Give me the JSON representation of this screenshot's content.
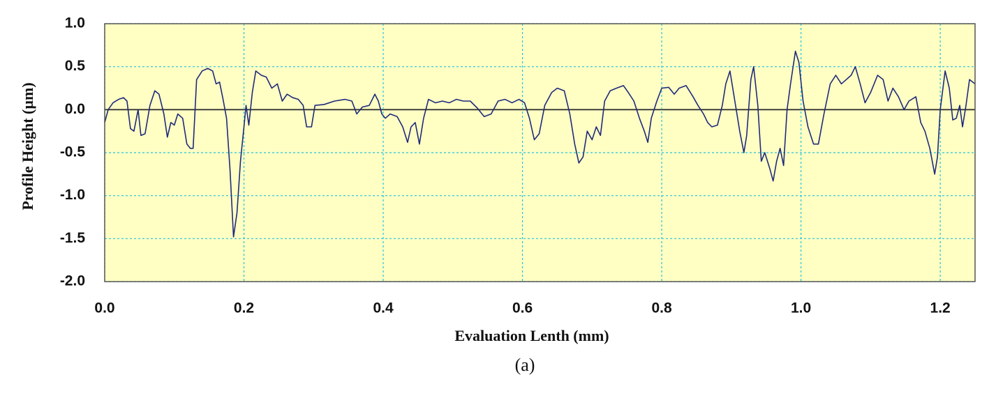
{
  "chart_data": {
    "type": "line",
    "caption": "(a)",
    "xlabel": "Evaluation Lenth (mm)",
    "ylabel": "Profile Height (µm)",
    "xlim": [
      0,
      1.25
    ],
    "ylim": [
      -2,
      1
    ],
    "xticks": [
      {
        "value": 0,
        "label": "0.0"
      },
      0.2,
      0.4,
      0.6,
      0.8,
      {
        "value": 1,
        "label": "1.0"
      },
      1.2
    ],
    "yticks": [
      {
        "value": -2,
        "label": "-2.0"
      },
      -1.5,
      {
        "value": -1,
        "label": "-1.0"
      },
      -0.5,
      {
        "value": 0,
        "label": "0.0"
      },
      0.5,
      {
        "value": 1,
        "label": "1.0"
      }
    ],
    "grid": true,
    "background": "#ffffc4",
    "x": [
      0,
      0.005,
      0.012,
      0.02,
      0.027,
      0.032,
      0.037,
      0.042,
      0.048,
      0.052,
      0.058,
      0.065,
      0.072,
      0.078,
      0.085,
      0.09,
      0.095,
      0.1,
      0.105,
      0.112,
      0.118,
      0.123,
      0.127,
      0.132,
      0.14,
      0.148,
      0.155,
      0.16,
      0.165,
      0.17,
      0.175,
      0.18,
      0.185,
      0.19,
      0.195,
      0.2,
      0.203,
      0.207,
      0.212,
      0.217,
      0.225,
      0.232,
      0.24,
      0.248,
      0.255,
      0.262,
      0.27,
      0.278,
      0.285,
      0.29,
      0.297,
      0.302,
      0.315,
      0.33,
      0.345,
      0.355,
      0.362,
      0.37,
      0.38,
      0.388,
      0.393,
      0.398,
      0.403,
      0.41,
      0.42,
      0.428,
      0.435,
      0.44,
      0.446,
      0.452,
      0.458,
      0.465,
      0.475,
      0.485,
      0.495,
      0.505,
      0.515,
      0.525,
      0.535,
      0.545,
      0.555,
      0.565,
      0.575,
      0.585,
      0.595,
      0.603,
      0.61,
      0.617,
      0.624,
      0.632,
      0.642,
      0.65,
      0.66,
      0.668,
      0.675,
      0.681,
      0.687,
      0.693,
      0.7,
      0.706,
      0.712,
      0.718,
      0.726,
      0.735,
      0.745,
      0.752,
      0.76,
      0.768,
      0.775,
      0.78,
      0.785,
      0.793,
      0.8,
      0.81,
      0.818,
      0.825,
      0.835,
      0.845,
      0.852,
      0.86,
      0.866,
      0.872,
      0.88,
      0.887,
      0.892,
      0.898,
      0.905,
      0.912,
      0.918,
      0.922,
      0.928,
      0.932,
      0.938,
      0.943,
      0.948,
      0.955,
      0.96,
      0.965,
      0.97,
      0.975,
      0.98,
      0.985,
      0.992,
      0.997,
      1.003,
      1.01,
      1.018,
      1.025,
      1.033,
      1.042,
      1.05,
      1.058,
      1.065,
      1.072,
      1.078,
      1.085,
      1.092,
      1.1,
      1.11,
      1.118,
      1.125,
      1.132,
      1.14,
      1.148,
      1.155,
      1.165,
      1.172,
      1.178,
      1.185,
      1.192,
      1.196,
      1.2,
      1.207,
      1.213,
      1.218,
      1.223,
      1.228,
      1.232,
      1.237,
      1.242,
      1.25
    ],
    "series": [
      {
        "color": "#1f2a7a",
        "values": [
          -0.15,
          0,
          0.08,
          0.12,
          0.14,
          0.1,
          -0.22,
          -0.25,
          0,
          -0.3,
          -0.28,
          0.05,
          0.22,
          0.18,
          -0.05,
          -0.32,
          -0.15,
          -0.18,
          -0.05,
          -0.1,
          -0.4,
          -0.45,
          -0.45,
          0.35,
          0.45,
          0.48,
          0.45,
          0.3,
          0.32,
          0.12,
          -0.1,
          -0.7,
          -1.48,
          -1.2,
          -0.6,
          -0.2,
          0.05,
          -0.18,
          0.2,
          0.45,
          0.4,
          0.38,
          0.25,
          0.3,
          0.1,
          0.18,
          0.14,
          0.12,
          0.05,
          -0.2,
          -0.2,
          0.05,
          0.06,
          0.1,
          0.12,
          0.1,
          -0.05,
          0.03,
          0.05,
          0.18,
          0.1,
          -0.05,
          -0.1,
          -0.05,
          -0.08,
          -0.2,
          -0.38,
          -0.2,
          -0.15,
          -0.4,
          -0.1,
          0.12,
          0.08,
          0.1,
          0.08,
          0.12,
          0.1,
          0.1,
          0.02,
          -0.08,
          -0.05,
          0.1,
          0.12,
          0.08,
          0.12,
          0.08,
          -0.1,
          -0.35,
          -0.28,
          0.05,
          0.2,
          0.25,
          0.22,
          -0.05,
          -0.4,
          -0.62,
          -0.55,
          -0.25,
          -0.35,
          -0.2,
          -0.3,
          0.1,
          0.22,
          0.25,
          0.28,
          0.2,
          0.1,
          -0.1,
          -0.25,
          -0.38,
          -0.1,
          0.1,
          0.25,
          0.26,
          0.18,
          0.25,
          0.28,
          0.15,
          0.05,
          -0.05,
          -0.15,
          -0.2,
          -0.18,
          0.05,
          0.3,
          0.45,
          0.1,
          -0.25,
          -0.5,
          -0.3,
          0.35,
          0.5,
          0.05,
          -0.6,
          -0.5,
          -0.68,
          -0.83,
          -0.6,
          -0.45,
          -0.65,
          0,
          0.3,
          0.68,
          0.55,
          0.1,
          -0.2,
          -0.4,
          -0.4,
          -0.05,
          0.3,
          0.4,
          0.3,
          0.35,
          0.4,
          0.5,
          0.3,
          0.08,
          0.2,
          0.4,
          0.35,
          0.1,
          0.25,
          0.15,
          0,
          0.1,
          0.15,
          -0.15,
          -0.25,
          -0.45,
          -0.75,
          -0.55,
          0,
          0.45,
          0.25,
          -0.12,
          -0.1,
          0.05,
          -0.2,
          0.05,
          0.35,
          0.3
        ]
      }
    ]
  }
}
